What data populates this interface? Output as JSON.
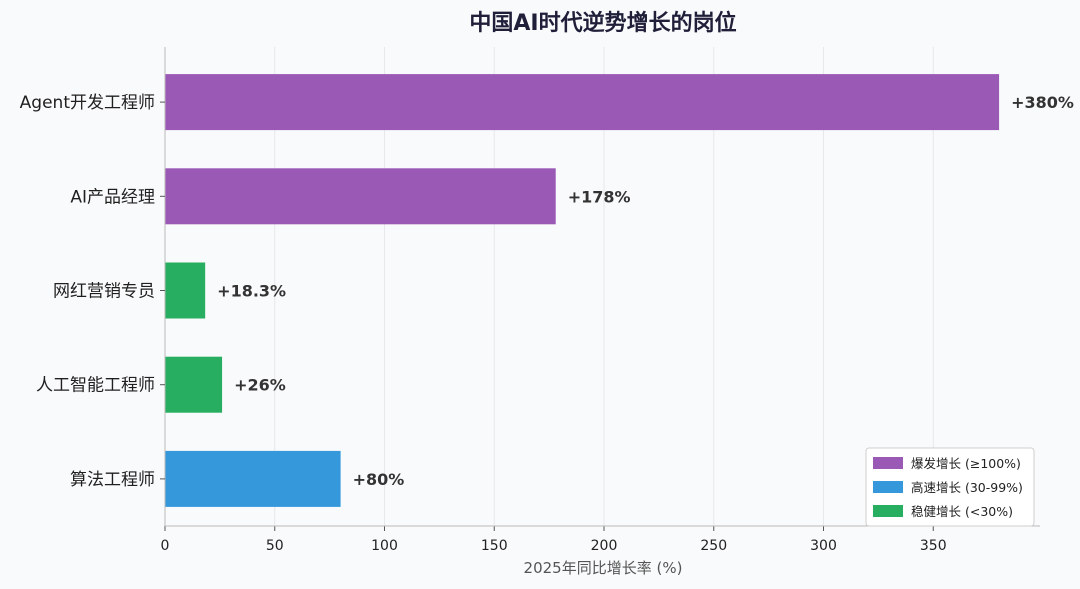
{
  "chart_data": {
    "type": "bar",
    "orientation": "horizontal",
    "title": "中国AI时代逆势增长的岗位",
    "xlabel": "2025年同比增长率 (%)",
    "ylabel": "",
    "xlim": [
      0,
      400
    ],
    "xticks": [
      0,
      50,
      100,
      150,
      200,
      250,
      300,
      350
    ],
    "grid": "vertical",
    "legend_position": "bottom-right",
    "categories": [
      "Agent开发工程师",
      "AI产品经理",
      "网红营销专员",
      "人工智能工程师",
      "算法工程师"
    ],
    "values": [
      380,
      178,
      18.3,
      26,
      80
    ],
    "value_labels": [
      "+380%",
      "+178%",
      "+18.3%",
      "+26%",
      "+80%"
    ],
    "bar_groups": [
      "explosive",
      "explosive",
      "steady",
      "steady",
      "fast"
    ],
    "legend": [
      {
        "key": "explosive",
        "label": "爆发增长 (≥100%)",
        "color": "#9b59b6"
      },
      {
        "key": "fast",
        "label": "高速增长 (30-99%)",
        "color": "#3498db"
      },
      {
        "key": "steady",
        "label": "稳健增长 (<30%)",
        "color": "#27ae60"
      }
    ]
  }
}
